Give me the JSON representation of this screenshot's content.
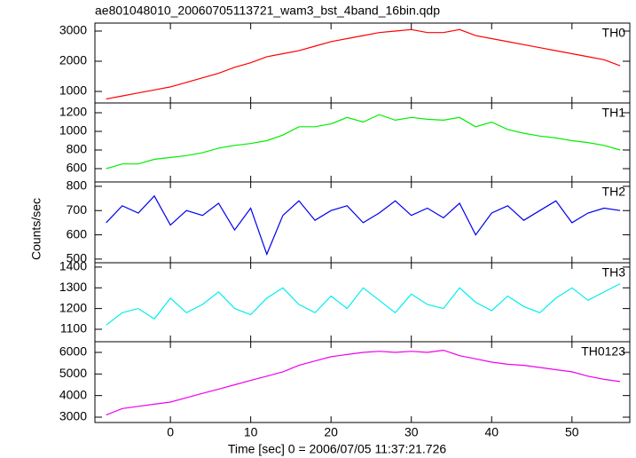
{
  "chart_data": {
    "type": "line",
    "title": "ae801048010_20060705113721_wam3_bst_4band_16bin.qdp",
    "xlabel": "Time [sec] 0 = 2006/07/05 11:37:21.726",
    "ylabel": "Counts/sec",
    "x": [
      -8,
      -6,
      -4,
      -2,
      0,
      2,
      4,
      6,
      8,
      10,
      12,
      14,
      16,
      18,
      20,
      22,
      24,
      26,
      28,
      30,
      32,
      34,
      36,
      38,
      40,
      42,
      44,
      46,
      48,
      50,
      52,
      54,
      56
    ],
    "xlim": [
      -9.4,
      57.2
    ],
    "xticks": [
      0,
      10,
      20,
      30,
      40,
      50
    ],
    "panels": [
      {
        "name": "TH0",
        "color": "#ff0000",
        "ylim": [
          618,
          3265
        ],
        "yticks": [
          1000,
          2000,
          3000
        ],
        "values": [
          750,
          850,
          950,
          1050,
          1150,
          1300,
          1450,
          1600,
          1800,
          1950,
          2150,
          2250,
          2350,
          2500,
          2650,
          2750,
          2850,
          2950,
          3000,
          3050,
          2950,
          2950,
          3050,
          2850,
          2750,
          2650,
          2550,
          2450,
          2350,
          2250,
          2150,
          2050,
          1850
        ]
      },
      {
        "name": "TH1",
        "color": "#00ee00",
        "ylim": [
          457,
          1305
        ],
        "yticks": [
          600,
          800,
          1000,
          1200
        ],
        "values": [
          600,
          650,
          650,
          700,
          720,
          740,
          770,
          820,
          850,
          870,
          900,
          960,
          1050,
          1050,
          1080,
          1150,
          1100,
          1180,
          1120,
          1150,
          1130,
          1120,
          1150,
          1050,
          1100,
          1020,
          980,
          950,
          930,
          900,
          880,
          850,
          800
        ]
      },
      {
        "name": "TH2",
        "color": "#0000ee",
        "ylim": [
          485,
          818
        ],
        "yticks": [
          500,
          600,
          700,
          800
        ],
        "values": [
          650,
          720,
          690,
          760,
          640,
          700,
          680,
          730,
          620,
          710,
          520,
          680,
          740,
          660,
          700,
          720,
          650,
          690,
          740,
          680,
          710,
          670,
          730,
          600,
          690,
          720,
          660,
          700,
          740,
          650,
          690,
          710,
          700
        ]
      },
      {
        "name": "TH3",
        "color": "#00eeee",
        "ylim": [
          1040,
          1421
        ],
        "yticks": [
          1100,
          1200,
          1300,
          1400
        ],
        "values": [
          1120,
          1180,
          1200,
          1150,
          1250,
          1180,
          1220,
          1280,
          1200,
          1170,
          1250,
          1300,
          1220,
          1180,
          1260,
          1200,
          1300,
          1240,
          1180,
          1270,
          1220,
          1200,
          1300,
          1230,
          1190,
          1260,
          1210,
          1180,
          1250,
          1300,
          1240,
          1280,
          1320
        ]
      },
      {
        "name": "TH0123",
        "color": "#ee00ee",
        "ylim": [
          2753,
          6494
        ],
        "yticks": [
          3000,
          4000,
          5000,
          6000
        ],
        "values": [
          3100,
          3400,
          3500,
          3600,
          3700,
          3900,
          4100,
          4300,
          4500,
          4700,
          4900,
          5100,
          5400,
          5600,
          5800,
          5900,
          6000,
          6050,
          6000,
          6050,
          6000,
          6100,
          5850,
          5700,
          5550,
          5450,
          5400,
          5300,
          5200,
          5100,
          4900,
          4750,
          4650
        ]
      }
    ]
  }
}
